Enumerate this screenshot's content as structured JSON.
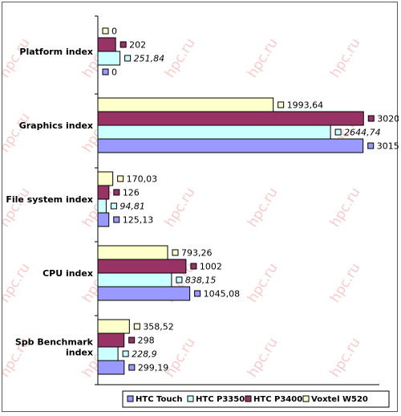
{
  "chart_data": {
    "type": "bar",
    "orientation": "horizontal",
    "title": "",
    "xlabel": "",
    "ylabel": "",
    "categories": [
      "Platform index",
      "Graphics index",
      "File system index",
      "CPU index",
      "Spb Benchmark index"
    ],
    "xlim": [
      0,
      3200
    ],
    "grid": false,
    "legend_position": "bottom",
    "watermark": "hpc.ru",
    "series": [
      {
        "name": "Voxtel W520",
        "color": "#FFFFCC",
        "values": [
          0,
          1993.64,
          170.03,
          793.26,
          358.52
        ],
        "labels": [
          "0",
          "1993,64",
          "170,03",
          "793,26",
          "358,52"
        ],
        "label_style": "normal"
      },
      {
        "name": "HTC P3400",
        "color": "#993366",
        "values": [
          202,
          3020,
          126,
          1002,
          298
        ],
        "labels": [
          "202",
          "3020",
          "126",
          "1002",
          "298"
        ],
        "label_style": "normal"
      },
      {
        "name": "HTC P3350",
        "color": "#CCFFFF",
        "values": [
          251.84,
          2644.74,
          94.81,
          838.15,
          228.9
        ],
        "labels": [
          "251,84",
          "2644,74",
          "94,81",
          "838,15",
          "228,9"
        ],
        "label_style": "italic"
      },
      {
        "name": "HTC Touch",
        "color": "#9999FF",
        "values": [
          0,
          3015.06,
          125.13,
          1045.08,
          299.19
        ],
        "labels": [
          "0",
          "3015,06",
          "125,13",
          "1045,08",
          "299,19"
        ],
        "label_style": "normal"
      }
    ],
    "legend_order": [
      "HTC Touch",
      "HTC P3350",
      "HTC P3400",
      "Voxtel W520"
    ]
  }
}
